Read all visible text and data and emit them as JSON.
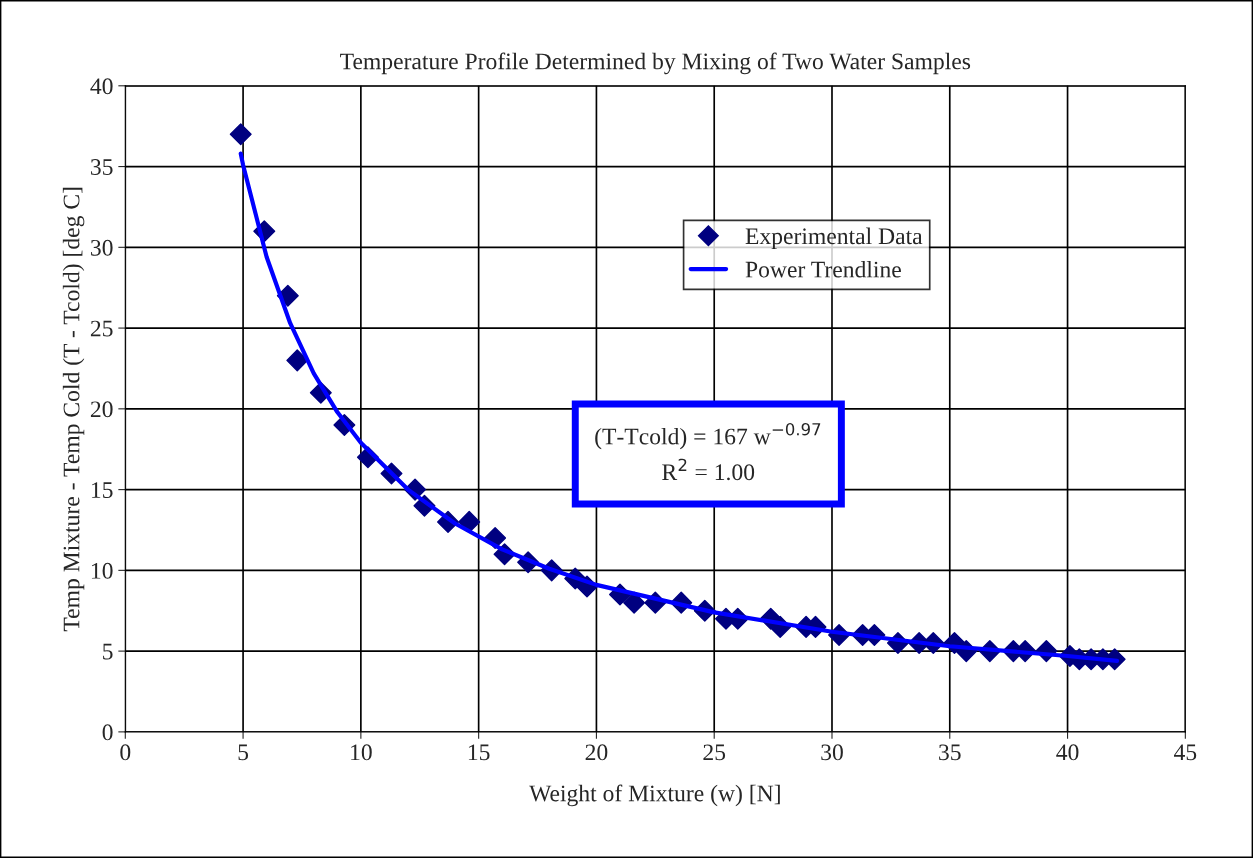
{
  "chart_data": {
    "type": "scatter",
    "title": "Temperature Profile Determined by Mixing of Two Water Samples",
    "xlabel": "Weight of Mixture (w) [N]",
    "ylabel": "Temp Mixture - Temp Cold (T - Tcold) [deg C]",
    "xlim": [
      0,
      45
    ],
    "xticks": [
      0,
      5,
      10,
      15,
      20,
      25,
      30,
      35,
      40,
      45
    ],
    "ylim": [
      0,
      40
    ],
    "yticks": [
      0,
      5,
      10,
      15,
      20,
      25,
      30,
      35,
      40
    ],
    "grid": true,
    "legend": "top right",
    "series": [
      {
        "name": "Experimental Data",
        "marker": "diamond",
        "color": "#000080",
        "x": [
          4.9,
          5.9,
          6.9,
          7.3,
          8.3,
          9.3,
          10.3,
          11.3,
          12.3,
          12.7,
          13.7,
          14.6,
          15.7,
          16.1,
          17.1,
          18.1,
          19.1,
          19.6,
          21.0,
          21.6,
          22.5,
          23.6,
          24.6,
          25.5,
          26.0,
          27.4,
          27.8,
          28.9,
          29.3,
          30.3,
          31.3,
          31.8,
          32.8,
          33.7,
          34.3,
          35.2,
          35.7,
          36.7,
          37.7,
          38.2,
          39.1,
          40.1,
          40.5,
          41.0,
          41.5,
          42.0
        ],
        "values": [
          37,
          31,
          27,
          23,
          21,
          19,
          17,
          16,
          15,
          14,
          13,
          13,
          12,
          11,
          10.5,
          10,
          9.5,
          9,
          8.5,
          8,
          8,
          8,
          7.5,
          7,
          7,
          7,
          6.5,
          6.5,
          6.5,
          6,
          6,
          6,
          5.5,
          5.5,
          5.5,
          5.5,
          5,
          5,
          5,
          5,
          5,
          4.7,
          4.5,
          4.5,
          4.5,
          4.5
        ]
      },
      {
        "name": "Power Trendline",
        "type": "line",
        "marker": "none",
        "line_style": "solid",
        "color": "#0000ff",
        "x": [
          4.9,
          5,
          6,
          7,
          8,
          9,
          10,
          12,
          14,
          16,
          18,
          20,
          25,
          30,
          35,
          40,
          42.1
        ],
        "values": [
          35.8,
          35.1,
          29.4,
          25.3,
          22.2,
          19.8,
          17.9,
          15.0,
          12.9,
          11.3,
          10.1,
          9.1,
          7.4,
          6.2,
          5.3,
          4.7,
          4.4
        ]
      }
    ],
    "annotations": [
      "(T-Tcold) = 167 w$^{−0.97}$\nR$^{2}$ = 1.00"
    ]
  }
}
